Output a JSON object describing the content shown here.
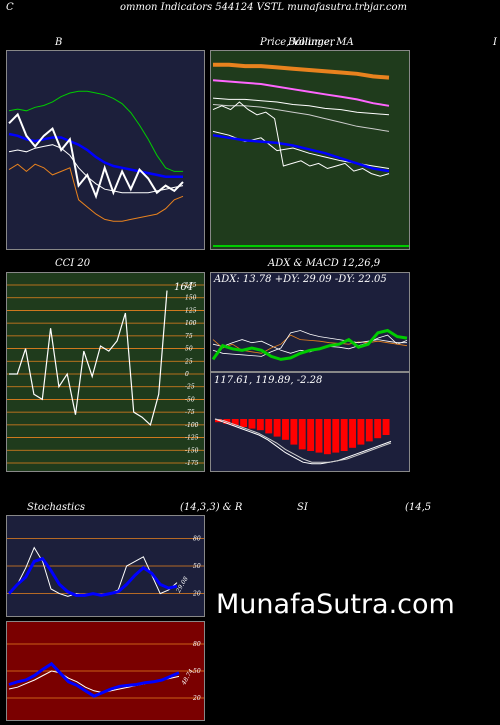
{
  "header": {
    "left_letter": "C",
    "title": "ommon  Indicators 544124  VSTL  munafasutra.trbjar.com"
  },
  "watermark": "MunafaSutra.com",
  "titles": {
    "bollinger": "B",
    "price_ma": "Price,  Volume,  MA",
    "price_ma_overlap": "Bollinger",
    "right_cut": "I",
    "cci": "CCI 20",
    "adx_macd": "ADX  & MACD 12,26,9",
    "stoch": "Stochastics",
    "stoch_params": "(14,3,3) & R",
    "rsi": "SI",
    "rsi_params": "(14,5"
  },
  "colors": {
    "panel_blue": "#1c1f3b",
    "panel_green": "#1f3b1c",
    "panel_red": "#7a0000",
    "white": "#ffffff",
    "blue": "#0000ff",
    "green": "#00cc00",
    "orange": "#e8821e",
    "red": "#ff0000"
  },
  "chart_data": [
    {
      "id": "bollinger",
      "type": "line",
      "title": "B",
      "ylim": [
        0,
        100
      ],
      "series": [
        {
          "values": [
            72,
            73,
            72,
            74,
            75,
            77,
            80,
            82,
            83,
            83,
            82,
            81,
            79,
            76,
            71,
            64,
            56,
            47,
            40,
            38,
            38
          ]
        },
        {
          "values": [
            59,
            58,
            56,
            55,
            56,
            57,
            57,
            55,
            53,
            50,
            46,
            43,
            41,
            40,
            39,
            38,
            37,
            36,
            35,
            35,
            35
          ]
        },
        {
          "values": [
            49,
            50,
            49,
            51,
            52,
            53,
            51,
            47,
            40,
            35,
            31,
            28,
            27,
            26,
            26,
            26,
            26,
            27,
            28,
            29,
            30
          ]
        },
        {
          "values": [
            39,
            42,
            38,
            42,
            40,
            36,
            38,
            40,
            22,
            18,
            14,
            11,
            10,
            10,
            11,
            12,
            13,
            14,
            17,
            22,
            24
          ]
        },
        {
          "values": [
            65,
            70,
            58,
            52,
            58,
            62,
            50,
            56,
            30,
            36,
            24,
            40,
            26,
            38,
            28,
            39,
            34,
            26,
            30,
            27,
            32
          ]
        }
      ]
    },
    {
      "id": "price",
      "type": "line",
      "title": "Price,  Volume,  MA",
      "ylim": [
        0,
        100
      ],
      "series": [
        {
          "values": [
            97,
            97,
            96,
            96,
            95,
            94,
            93,
            92,
            91,
            90,
            88,
            87
          ]
        },
        {
          "values": [
            85,
            84,
            83,
            82,
            80,
            78,
            76,
            74,
            72,
            70,
            67,
            65
          ]
        },
        {
          "values": [
            71,
            70,
            70,
            69,
            68,
            66,
            65,
            63,
            62,
            60,
            59,
            58
          ]
        },
        {
          "values": [
            66,
            65,
            65,
            64,
            62,
            60,
            58,
            55,
            52,
            49,
            47,
            45
          ]
        },
        {
          "values": [
            45,
            42,
            37,
            40,
            30,
            32,
            28,
            25,
            22,
            20,
            18,
            16
          ]
        },
        {
          "values": [
            42,
            40,
            38,
            37,
            36,
            34,
            31,
            28,
            24,
            20,
            16,
            14
          ]
        },
        {
          "values": [
            62,
            65,
            62,
            68,
            62,
            58,
            60,
            55,
            18,
            20,
            22,
            18,
            20,
            16,
            18,
            20,
            14,
            16,
            12,
            10,
            12
          ]
        }
      ]
    },
    {
      "id": "cci",
      "type": "line",
      "title": "CCI 20",
      "ylim": [
        -175,
        175
      ],
      "yticks": [
        175,
        150,
        125,
        100,
        75,
        50,
        25,
        0,
        -25,
        -50,
        -75,
        -100,
        -125,
        -150,
        -175
      ],
      "last_label": "164",
      "values": [
        0,
        0,
        50,
        -40,
        -50,
        90,
        -25,
        0,
        -80,
        45,
        -5,
        55,
        45,
        65,
        120,
        -75,
        -85,
        -100,
        -40,
        164
      ]
    },
    {
      "id": "adx",
      "type": "line",
      "title": "ADX  & MACD 12,26,9",
      "label": "ADX: 13.78  +DY: 29.09 -DY: 22.05",
      "ylim": [
        0,
        100
      ],
      "series": [
        {
          "values": [
            30,
            27,
            32,
            36,
            32,
            34,
            28,
            22,
            18,
            22,
            20,
            24,
            27,
            26,
            24,
            28,
            32,
            38,
            42,
            30,
            35
          ]
        },
        {
          "values": [
            36,
            25,
            30,
            22,
            20,
            18,
            25,
            30,
            42,
            36,
            35,
            34,
            32,
            31,
            30,
            33,
            32,
            34,
            32,
            30,
            28
          ]
        },
        {
          "values": [
            22,
            18,
            17,
            16,
            15,
            14,
            20,
            25,
            45,
            48,
            43,
            40,
            38,
            36,
            34,
            32,
            34,
            36,
            34,
            32,
            32
          ]
        },
        {
          "values": [
            10,
            28,
            24,
            22,
            25,
            22,
            14,
            10,
            12,
            18,
            22,
            24,
            28,
            30,
            36,
            26,
            30,
            45,
            48,
            40,
            38
          ]
        }
      ]
    },
    {
      "id": "macd",
      "type": "bar",
      "label": "117.61,  119.89,  -2.28",
      "ylim": [
        -30,
        10
      ],
      "hist": [
        -2,
        -3,
        -4,
        -5,
        -6,
        -7,
        -9,
        -11,
        -13,
        -16,
        -19,
        -20,
        -21,
        -22,
        -21,
        -20,
        -18,
        -16,
        -14,
        -12,
        -10
      ],
      "series": [
        {
          "values": [
            0,
            -2,
            -4,
            -6,
            -8,
            -10,
            -13,
            -17,
            -21,
            -24,
            -27,
            -28,
            -28,
            -27,
            -26,
            -24,
            -22,
            -20,
            -18,
            -16,
            -14
          ]
        },
        {
          "values": [
            0,
            -1,
            -3,
            -5,
            -7,
            -9,
            -12,
            -15,
            -19,
            -22,
            -25,
            -27,
            -27,
            -27,
            -26,
            -25,
            -23,
            -21,
            -19,
            -17,
            -15
          ]
        }
      ]
    },
    {
      "id": "stoch",
      "type": "line",
      "title": "Stochastics",
      "ylim": [
        0,
        100
      ],
      "yticks": [
        80,
        50,
        20
      ],
      "last_label": "29.08",
      "series": [
        {
          "values": [
            20,
            30,
            48,
            70,
            55,
            25,
            20,
            17,
            20,
            18,
            20,
            18,
            20,
            24,
            50,
            55,
            60,
            40,
            20,
            24,
            32
          ]
        },
        {
          "values": [
            20,
            30,
            38,
            55,
            58,
            45,
            30,
            22,
            18,
            18,
            20,
            18,
            20,
            22,
            30,
            40,
            48,
            42,
            30,
            26,
            28
          ]
        }
      ]
    },
    {
      "id": "rsi",
      "type": "line",
      "ylim": [
        0,
        100
      ],
      "yticks": [
        80,
        50,
        20
      ],
      "last_label": "48.74",
      "series": [
        {
          "values": [
            35,
            38,
            40,
            45,
            52,
            58,
            48,
            38,
            34,
            28,
            22,
            26,
            30,
            33,
            34,
            35,
            37,
            38,
            40,
            44,
            48
          ]
        },
        {
          "values": [
            30,
            32,
            36,
            40,
            45,
            50,
            48,
            42,
            38,
            32,
            28,
            26,
            28,
            30,
            32,
            34,
            36,
            38,
            40,
            42,
            44
          ]
        }
      ]
    }
  ]
}
